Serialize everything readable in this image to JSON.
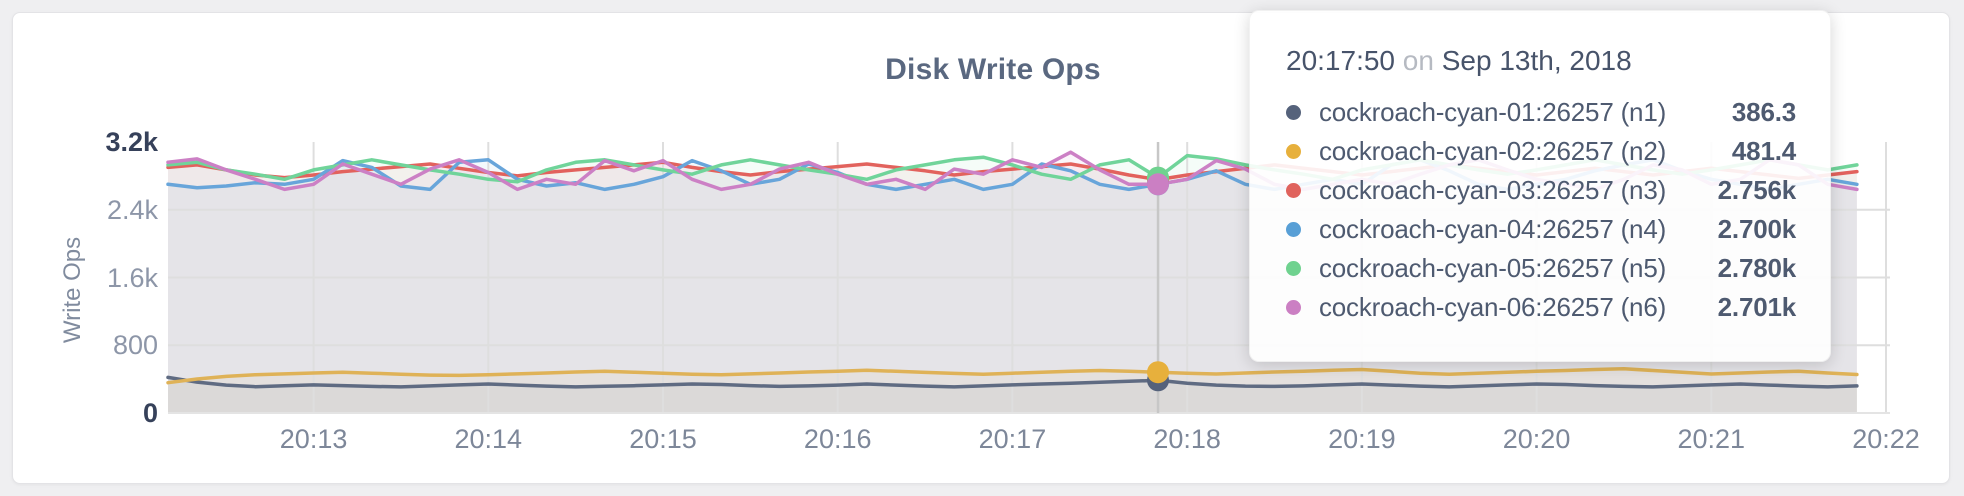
{
  "page": {
    "background": "#efeff1"
  },
  "card": {
    "background": "#ffffff",
    "border": "#e3e3e6"
  },
  "colors": {
    "grid": "#dedede",
    "axis_tick": "#8d96a8",
    "axis_tick_emphasis": "#36415a",
    "x_tick": "#7d8799",
    "title": "#5a6880",
    "hover_line": "#c7c7c7",
    "baseline": "#e4e4e4",
    "tooltip_text": "#4e5a70",
    "tooltip_muted": "#b6bac2",
    "area_fill_opacity": 0.07
  },
  "chart_data": {
    "type": "line",
    "title": "Disk Write Ops",
    "ylabel": "Write Ops",
    "xlabel": "",
    "ylim": [
      0,
      3200
    ],
    "grid": true,
    "legend_position": "tooltip",
    "x_start": "20:12:10",
    "x_end": "20:21:50",
    "x_step_seconds": 10,
    "y_ticks": [
      {
        "value": 0,
        "label": "0",
        "emphasis": true,
        "grid": false
      },
      {
        "value": 800,
        "label": "800",
        "emphasis": false,
        "grid": true
      },
      {
        "value": 1600,
        "label": "1.6k",
        "emphasis": false,
        "grid": true
      },
      {
        "value": 2400,
        "label": "2.4k",
        "emphasis": false,
        "grid": true
      },
      {
        "value": 3200,
        "label": "3.2k",
        "emphasis": true,
        "grid": false
      }
    ],
    "x_ticks": [
      {
        "label": "20:13",
        "idx": 5
      },
      {
        "label": "20:14",
        "idx": 11
      },
      {
        "label": "20:15",
        "idx": 17
      },
      {
        "label": "20:16",
        "idx": 23
      },
      {
        "label": "20:17",
        "idx": 29
      },
      {
        "label": "20:18",
        "idx": 35
      },
      {
        "label": "20:19",
        "idx": 41
      },
      {
        "label": "20:20",
        "idx": 47
      },
      {
        "label": "20:21",
        "idx": 53
      },
      {
        "label": "20:22",
        "idx": 59
      }
    ],
    "series": [
      {
        "name": "cockroach-cyan-01:26257 (n1)",
        "color": "#5f6b82",
        "values": [
          420,
          365,
          330,
          310,
          322,
          332,
          324,
          314,
          308,
          320,
          332,
          342,
          330,
          318,
          308,
          316,
          322,
          332,
          342,
          336,
          324,
          314,
          320,
          330,
          342,
          330,
          318,
          308,
          320,
          332,
          342,
          352,
          362,
          374,
          386.3,
          352,
          330,
          318,
          314,
          320,
          332,
          342,
          330,
          318,
          308,
          320,
          332,
          342,
          336,
          324,
          314,
          308,
          320,
          332,
          342,
          330,
          318,
          308,
          320
        ]
      },
      {
        "name": "cockroach-cyan-02:26257 (n2)",
        "color": "#dfb257",
        "values": [
          358,
          402,
          432,
          452,
          462,
          472,
          482,
          470,
          458,
          448,
          444,
          452,
          462,
          472,
          484,
          494,
          482,
          470,
          458,
          452,
          462,
          472,
          484,
          494,
          504,
          492,
          480,
          468,
          458,
          470,
          482,
          492,
          502,
          492,
          481.4,
          470,
          460,
          472,
          484,
          494,
          504,
          514,
          492,
          470,
          458,
          470,
          482,
          492,
          502,
          514,
          522,
          502,
          482,
          460,
          472,
          484,
          494,
          472,
          455
        ]
      },
      {
        "name": "cockroach-cyan-03:26257 (n3)",
        "color": "#e2625d",
        "values": [
          2900,
          2930,
          2870,
          2810,
          2780,
          2810,
          2850,
          2880,
          2910,
          2940,
          2890,
          2840,
          2800,
          2840,
          2870,
          2900,
          2930,
          2960,
          2900,
          2850,
          2810,
          2850,
          2880,
          2910,
          2940,
          2900,
          2860,
          2810,
          2850,
          2880,
          2910,
          2940,
          2880,
          2810,
          2756,
          2810,
          2850,
          2890,
          2930,
          2890,
          2850,
          2810,
          2850,
          2890,
          2930,
          2890,
          2850,
          2810,
          2850,
          2890,
          2850,
          2810,
          2850,
          2890,
          2850,
          2810,
          2770,
          2810,
          2850
        ]
      },
      {
        "name": "cockroach-cyan-04:26257 (n4)",
        "color": "#68a5da",
        "values": [
          2700,
          2660,
          2680,
          2720,
          2700,
          2760,
          2980,
          2900,
          2680,
          2640,
          2960,
          2990,
          2760,
          2680,
          2720,
          2640,
          2700,
          2790,
          2980,
          2860,
          2700,
          2760,
          2940,
          2840,
          2700,
          2640,
          2700,
          2760,
          2640,
          2700,
          2940,
          2860,
          2700,
          2640,
          2700,
          2760,
          2860,
          2700,
          2640,
          2700,
          2760,
          2700,
          2930,
          2990,
          2860,
          2700,
          2640,
          2700,
          2760,
          2860,
          2930,
          2990,
          2860,
          2760,
          2700,
          2640,
          2700,
          2760,
          2700
        ]
      },
      {
        "name": "cockroach-cyan-05:26257 (n5)",
        "color": "#70d49a",
        "values": [
          2930,
          2960,
          2870,
          2820,
          2760,
          2870,
          2930,
          2990,
          2930,
          2870,
          2820,
          2760,
          2730,
          2870,
          2960,
          2990,
          2930,
          2870,
          2820,
          2930,
          2990,
          2930,
          2870,
          2820,
          2760,
          2870,
          2930,
          2990,
          3020,
          2930,
          2820,
          2760,
          2930,
          2990,
          2780,
          3040,
          3000,
          2930,
          2870,
          2820,
          2760,
          2870,
          2930,
          2990,
          2930,
          2870,
          2820,
          2870,
          2930,
          2990,
          2930,
          2870,
          2820,
          2870,
          2930,
          2990,
          2930,
          2870,
          2930
        ]
      },
      {
        "name": "cockroach-cyan-06:26257 (n6)",
        "color": "#cc80c5",
        "values": [
          2960,
          3000,
          2870,
          2760,
          2640,
          2700,
          2940,
          2820,
          2700,
          2880,
          2990,
          2840,
          2640,
          2760,
          2700,
          2980,
          2860,
          2980,
          2760,
          2640,
          2700,
          2880,
          2960,
          2820,
          2700,
          2760,
          2640,
          2880,
          2820,
          2990,
          2900,
          3080,
          2870,
          2700,
          2701,
          2760,
          2980,
          2880,
          2700,
          2640,
          2700,
          2760,
          2700,
          2820,
          2930,
          2990,
          2870,
          2760,
          2700,
          2640,
          2760,
          2930,
          2870,
          2700,
          2760,
          2990,
          2930,
          2700,
          2640
        ]
      }
    ]
  },
  "tooltip": {
    "time": "20:17:50",
    "conjunction": "on",
    "date": "Sep 13th, 2018",
    "hover_index": 34,
    "rows": [
      {
        "label": "cockroach-cyan-01:26257 (n1)",
        "value": 386.3,
        "value_label": "386.3",
        "color": "#55627b"
      },
      {
        "label": "cockroach-cyan-02:26257 (n2)",
        "value": 481.4,
        "value_label": "481.4",
        "color": "#e7b03c"
      },
      {
        "label": "cockroach-cyan-03:26257 (n3)",
        "value": 2756,
        "value_label": "2.756k",
        "color": "#e0635d"
      },
      {
        "label": "cockroach-cyan-04:26257 (n4)",
        "value": 2700,
        "value_label": "2.700k",
        "color": "#589fd6"
      },
      {
        "label": "cockroach-cyan-05:26257 (n5)",
        "value": 2780,
        "value_label": "2.780k",
        "color": "#6fd28f"
      },
      {
        "label": "cockroach-cyan-06:26257 (n6)",
        "value": 2701,
        "value_label": "2.701k",
        "color": "#cb7fc3"
      }
    ]
  }
}
